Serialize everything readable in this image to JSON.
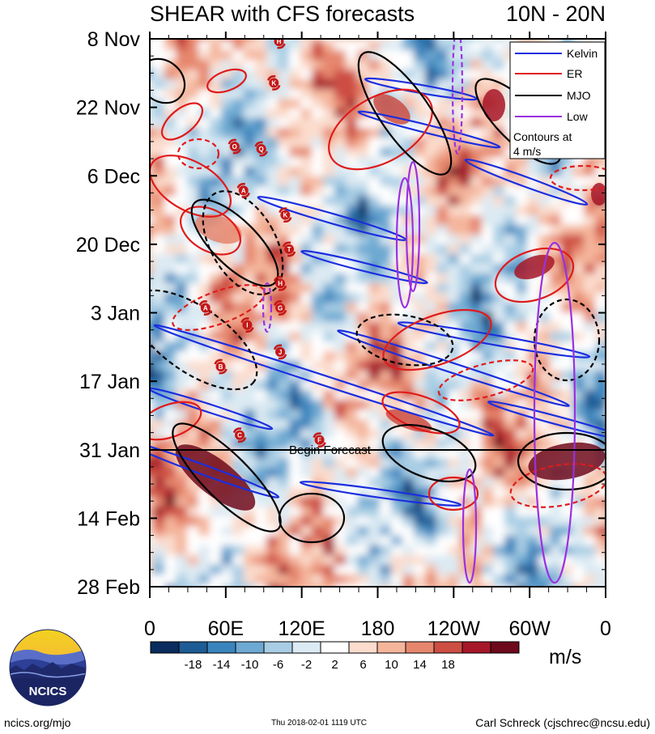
{
  "title_left": "SHEAR with CFS forecasts",
  "title_right": "10N - 20N",
  "chart_data": {
    "type": "heatmap",
    "title": "SHEAR with CFS forecasts",
    "region": "10N - 20N",
    "units": "m/s",
    "y_ticks": [
      "8 Nov",
      "22 Nov",
      "6 Dec",
      "20 Dec",
      "3 Jan",
      "17 Jan",
      "31 Jan",
      "14 Feb",
      "28 Feb"
    ],
    "x_ticks": [
      "0",
      "60E",
      "120E",
      "180",
      "120W",
      "60W",
      "0"
    ],
    "x_range_deg_east": [
      0,
      360
    ],
    "colorbar_levels": [
      "-18",
      "-14",
      "-10",
      "-6",
      "-2",
      "2",
      "6",
      "10",
      "14",
      "18"
    ],
    "colorbar_colors": [
      "#0a2c5e",
      "#1d5c94",
      "#3a84bd",
      "#6da9d2",
      "#a8cde4",
      "#dceaf3",
      "#ffffff",
      "#fbdccd",
      "#f4b59b",
      "#e6866d",
      "#cd4e43",
      "#a61729",
      "#6e0a1c"
    ],
    "forecast_marker": "Begin Forecast",
    "legend": [
      {
        "label": "Kelvin",
        "color": "#1b2ee0"
      },
      {
        "label": "ER",
        "color": "#e01b1b"
      },
      {
        "label": "MJO",
        "color": "#000000"
      },
      {
        "label": "Low",
        "color": "#9b30e0"
      }
    ],
    "contour_note": [
      "Contours at",
      "4 m/s"
    ],
    "storms": [
      {
        "letter": "H",
        "lon": 102,
        "day": 0.5
      },
      {
        "letter": "K",
        "lon": 98,
        "day": 9
      },
      {
        "letter": "O",
        "lon": 67,
        "day": 22
      },
      {
        "letter": "Q",
        "lon": 88,
        "day": 22.5
      },
      {
        "letter": "A",
        "lon": 74,
        "day": 31
      },
      {
        "letter": "K",
        "lon": 107,
        "day": 36
      },
      {
        "letter": "T",
        "lon": 110,
        "day": 43
      },
      {
        "letter": "H",
        "lon": 103,
        "day": 50
      },
      {
        "letter": "A",
        "lon": 44,
        "day": 55
      },
      {
        "letter": "G",
        "lon": 103,
        "day": 55
      },
      {
        "letter": "I",
        "lon": 77,
        "day": 58.5
      },
      {
        "letter": "J",
        "lon": 103,
        "day": 64
      },
      {
        "letter": "B",
        "lon": 56,
        "day": 67
      },
      {
        "letter": "C",
        "lon": 71,
        "day": 81
      },
      {
        "letter": "F",
        "lon": 134,
        "day": 82
      }
    ]
  },
  "footer": {
    "left": "ncics.org/mjo",
    "middle": "Thu 2018-02-01 1119 UTC",
    "right": "Carl Schreck (cjschrec@ncsu.edu)"
  },
  "logo_text": "NCICS"
}
